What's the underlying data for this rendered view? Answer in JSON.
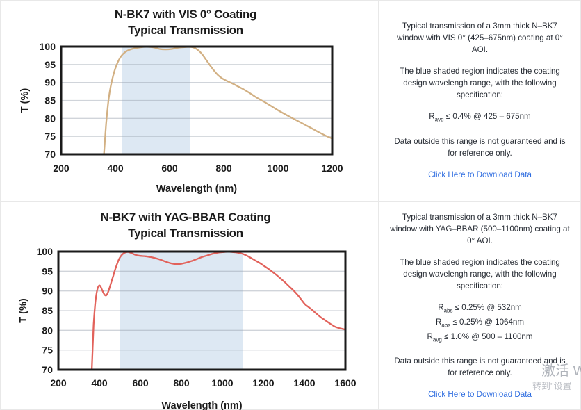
{
  "panels": [
    {
      "title_line1": "N-BK7 with VIS 0° Coating",
      "title_line2": "Typical Transmission",
      "paragraphs": [
        "Typical transmission of a 3mm thick N–BK7 window with VIS 0° (425–675nm) coating at 0° AOI.",
        "The blue shaded region indicates the coating design wavelengh range, with the following specification:"
      ],
      "specs": [
        {
          "prefix": "R",
          "sub": "avg",
          "rest": "≤ 0.4% @ 425 – 675nm"
        }
      ],
      "disclaimer": "Data outside this range is not guaranteed and is for reference only.",
      "link_label": "Click Here to Download Data"
    },
    {
      "title_line1": "N-BK7 with YAG-BBAR Coating",
      "title_line2": "Typical Transmission",
      "paragraphs": [
        "Typical transmission of a 3mm thick N–BK7 window with YAG–BBAR (500–1100nm) coating at 0° AOI.",
        "The blue shaded region indicates the coating design wavelengh range, with the following specification:"
      ],
      "specs": [
        {
          "prefix": "R",
          "sub": "abs",
          "rest": "≤ 0.25% @ 532nm"
        },
        {
          "prefix": "R",
          "sub": "abs",
          "rest": "≤ 0.25% @ 1064nm"
        },
        {
          "prefix": "R",
          "sub": "avg",
          "rest": "≤ 1.0% @ 500 – 1100nm"
        }
      ],
      "disclaimer": "Data outside this range is not guaranteed and is for reference only.",
      "link_label": "Click Here to Download Data"
    }
  ],
  "chart_data": [
    {
      "type": "line",
      "title": "N-BK7 with VIS 0° Coating — Typical Transmission",
      "xlabel": "Wavelength (nm)",
      "ylabel": "T (%)",
      "xlim": [
        200,
        1200
      ],
      "ylim": [
        70,
        100
      ],
      "xticks": [
        200,
        400,
        600,
        800,
        1000,
        1200
      ],
      "yticks": [
        70,
        75,
        80,
        85,
        90,
        95,
        100
      ],
      "grid": "horizontal",
      "legend": "none",
      "shaded_region": {
        "x0": 425,
        "x1": 675,
        "meaning": "coating design wavelength range"
      },
      "series": [
        {
          "name": "T (%)",
          "color": "#d2b083",
          "points": [
            [
              358,
              70
            ],
            [
              362,
              74.5
            ],
            [
              366,
              78.5
            ],
            [
              371,
              82.5
            ],
            [
              376,
              85.8
            ],
            [
              382,
              88.6
            ],
            [
              389,
              91
            ],
            [
              396,
              93
            ],
            [
              404,
              94.8
            ],
            [
              413,
              96.3
            ],
            [
              422,
              97.4
            ],
            [
              432,
              98.2
            ],
            [
              443,
              98.8
            ],
            [
              456,
              99.2
            ],
            [
              470,
              99.5
            ],
            [
              486,
              99.7
            ],
            [
              505,
              99.9
            ],
            [
              525,
              99.9
            ],
            [
              545,
              99.7
            ],
            [
              565,
              99.3
            ],
            [
              585,
              99.2
            ],
            [
              605,
              99.3
            ],
            [
              625,
              99.6
            ],
            [
              648,
              99.8
            ],
            [
              668,
              99.9
            ],
            [
              685,
              99.8
            ],
            [
              698,
              99.4
            ],
            [
              710,
              98.7
            ],
            [
              722,
              97.7
            ],
            [
              735,
              96.3
            ],
            [
              748,
              94.9
            ],
            [
              762,
              93.5
            ],
            [
              778,
              92.1
            ],
            [
              795,
              91.1
            ],
            [
              815,
              90.3
            ],
            [
              835,
              89.6
            ],
            [
              855,
              88.8
            ],
            [
              875,
              88
            ],
            [
              895,
              87.1
            ],
            [
              915,
              86.1
            ],
            [
              935,
              85.2
            ],
            [
              958,
              84.2
            ],
            [
              982,
              83.1
            ],
            [
              1006,
              82
            ],
            [
              1030,
              81
            ],
            [
              1052,
              80.1
            ],
            [
              1075,
              79.2
            ],
            [
              1100,
              78.2
            ],
            [
              1125,
              77.2
            ],
            [
              1152,
              76.1
            ],
            [
              1175,
              75.2
            ],
            [
              1190,
              74.7
            ],
            [
              1200,
              74.4
            ]
          ]
        }
      ]
    },
    {
      "type": "line",
      "title": "N-BK7 with YAG-BBAR Coating — Typical Transmission",
      "xlabel": "Wavelength (nm)",
      "ylabel": "T (%)",
      "xlim": [
        200,
        1600
      ],
      "ylim": [
        70,
        100
      ],
      "xticks": [
        200,
        400,
        600,
        800,
        1000,
        1200,
        1400,
        1600
      ],
      "yticks": [
        70,
        75,
        80,
        85,
        90,
        95,
        100
      ],
      "grid": "horizontal",
      "legend": "none",
      "shaded_region": {
        "x0": 500,
        "x1": 1100,
        "meaning": "coating design wavelength range"
      },
      "series": [
        {
          "name": "T (%)",
          "color": "#e2625b",
          "points": [
            [
              363,
              70
            ],
            [
              366,
              74
            ],
            [
              369,
              78
            ],
            [
              372,
              81.5
            ],
            [
              376,
              84.5
            ],
            [
              380,
              87
            ],
            [
              385,
              89
            ],
            [
              390,
              90.4
            ],
            [
              395,
              91.1
            ],
            [
              400,
              91.4
            ],
            [
              406,
              91.1
            ],
            [
              413,
              90.3
            ],
            [
              421,
              89.4
            ],
            [
              428,
              88.9
            ],
            [
              434,
              88.9
            ],
            [
              441,
              89.5
            ],
            [
              449,
              90.7
            ],
            [
              458,
              92.2
            ],
            [
              468,
              93.9
            ],
            [
              478,
              95.6
            ],
            [
              488,
              97.1
            ],
            [
              497,
              98.2
            ],
            [
              507,
              99
            ],
            [
              517,
              99.5
            ],
            [
              528,
              99.8
            ],
            [
              540,
              99.9
            ],
            [
              552,
              99.7
            ],
            [
              565,
              99.4
            ],
            [
              580,
              99.1
            ],
            [
              600,
              98.9
            ],
            [
              625,
              98.8
            ],
            [
              650,
              98.6
            ],
            [
              675,
              98.3
            ],
            [
              700,
              97.9
            ],
            [
              725,
              97.4
            ],
            [
              750,
              97
            ],
            [
              775,
              96.8
            ],
            [
              800,
              96.9
            ],
            [
              825,
              97.2
            ],
            [
              850,
              97.6
            ],
            [
              875,
              98.1
            ],
            [
              900,
              98.6
            ],
            [
              925,
              99
            ],
            [
              950,
              99.4
            ],
            [
              975,
              99.7
            ],
            [
              1000,
              99.85
            ],
            [
              1025,
              99.95
            ],
            [
              1045,
              99.9
            ],
            [
              1065,
              99.8
            ],
            [
              1085,
              99.6
            ],
            [
              1105,
              99.3
            ],
            [
              1125,
              98.8
            ],
            [
              1145,
              98.2
            ],
            [
              1165,
              97.6
            ],
            [
              1185,
              97
            ],
            [
              1205,
              96.3
            ],
            [
              1225,
              95.6
            ],
            [
              1245,
              94.8
            ],
            [
              1265,
              94
            ],
            [
              1285,
              93.1
            ],
            [
              1305,
              92.2
            ],
            [
              1325,
              91.2
            ],
            [
              1345,
              90.2
            ],
            [
              1365,
              89.1
            ],
            [
              1382,
              88
            ],
            [
              1395,
              87.1
            ],
            [
              1405,
              86.5
            ],
            [
              1418,
              86
            ],
            [
              1435,
              85.3
            ],
            [
              1455,
              84.4
            ],
            [
              1478,
              83.4
            ],
            [
              1500,
              82.6
            ],
            [
              1525,
              81.7
            ],
            [
              1550,
              80.9
            ],
            [
              1575,
              80.5
            ],
            [
              1600,
              80.2
            ]
          ]
        }
      ]
    }
  ],
  "watermark": {
    "line1": "激活 W",
    "line2": "转到\"设置"
  },
  "colors": {
    "link": "#2d6ce0",
    "body_text": "#262b33",
    "chart_text": "#1b1b1b",
    "panel_border": "#e8e8e8",
    "shade_fill": "#dde8f3",
    "curve_vis": "#d2b083",
    "curve_yag": "#e2625b"
  }
}
